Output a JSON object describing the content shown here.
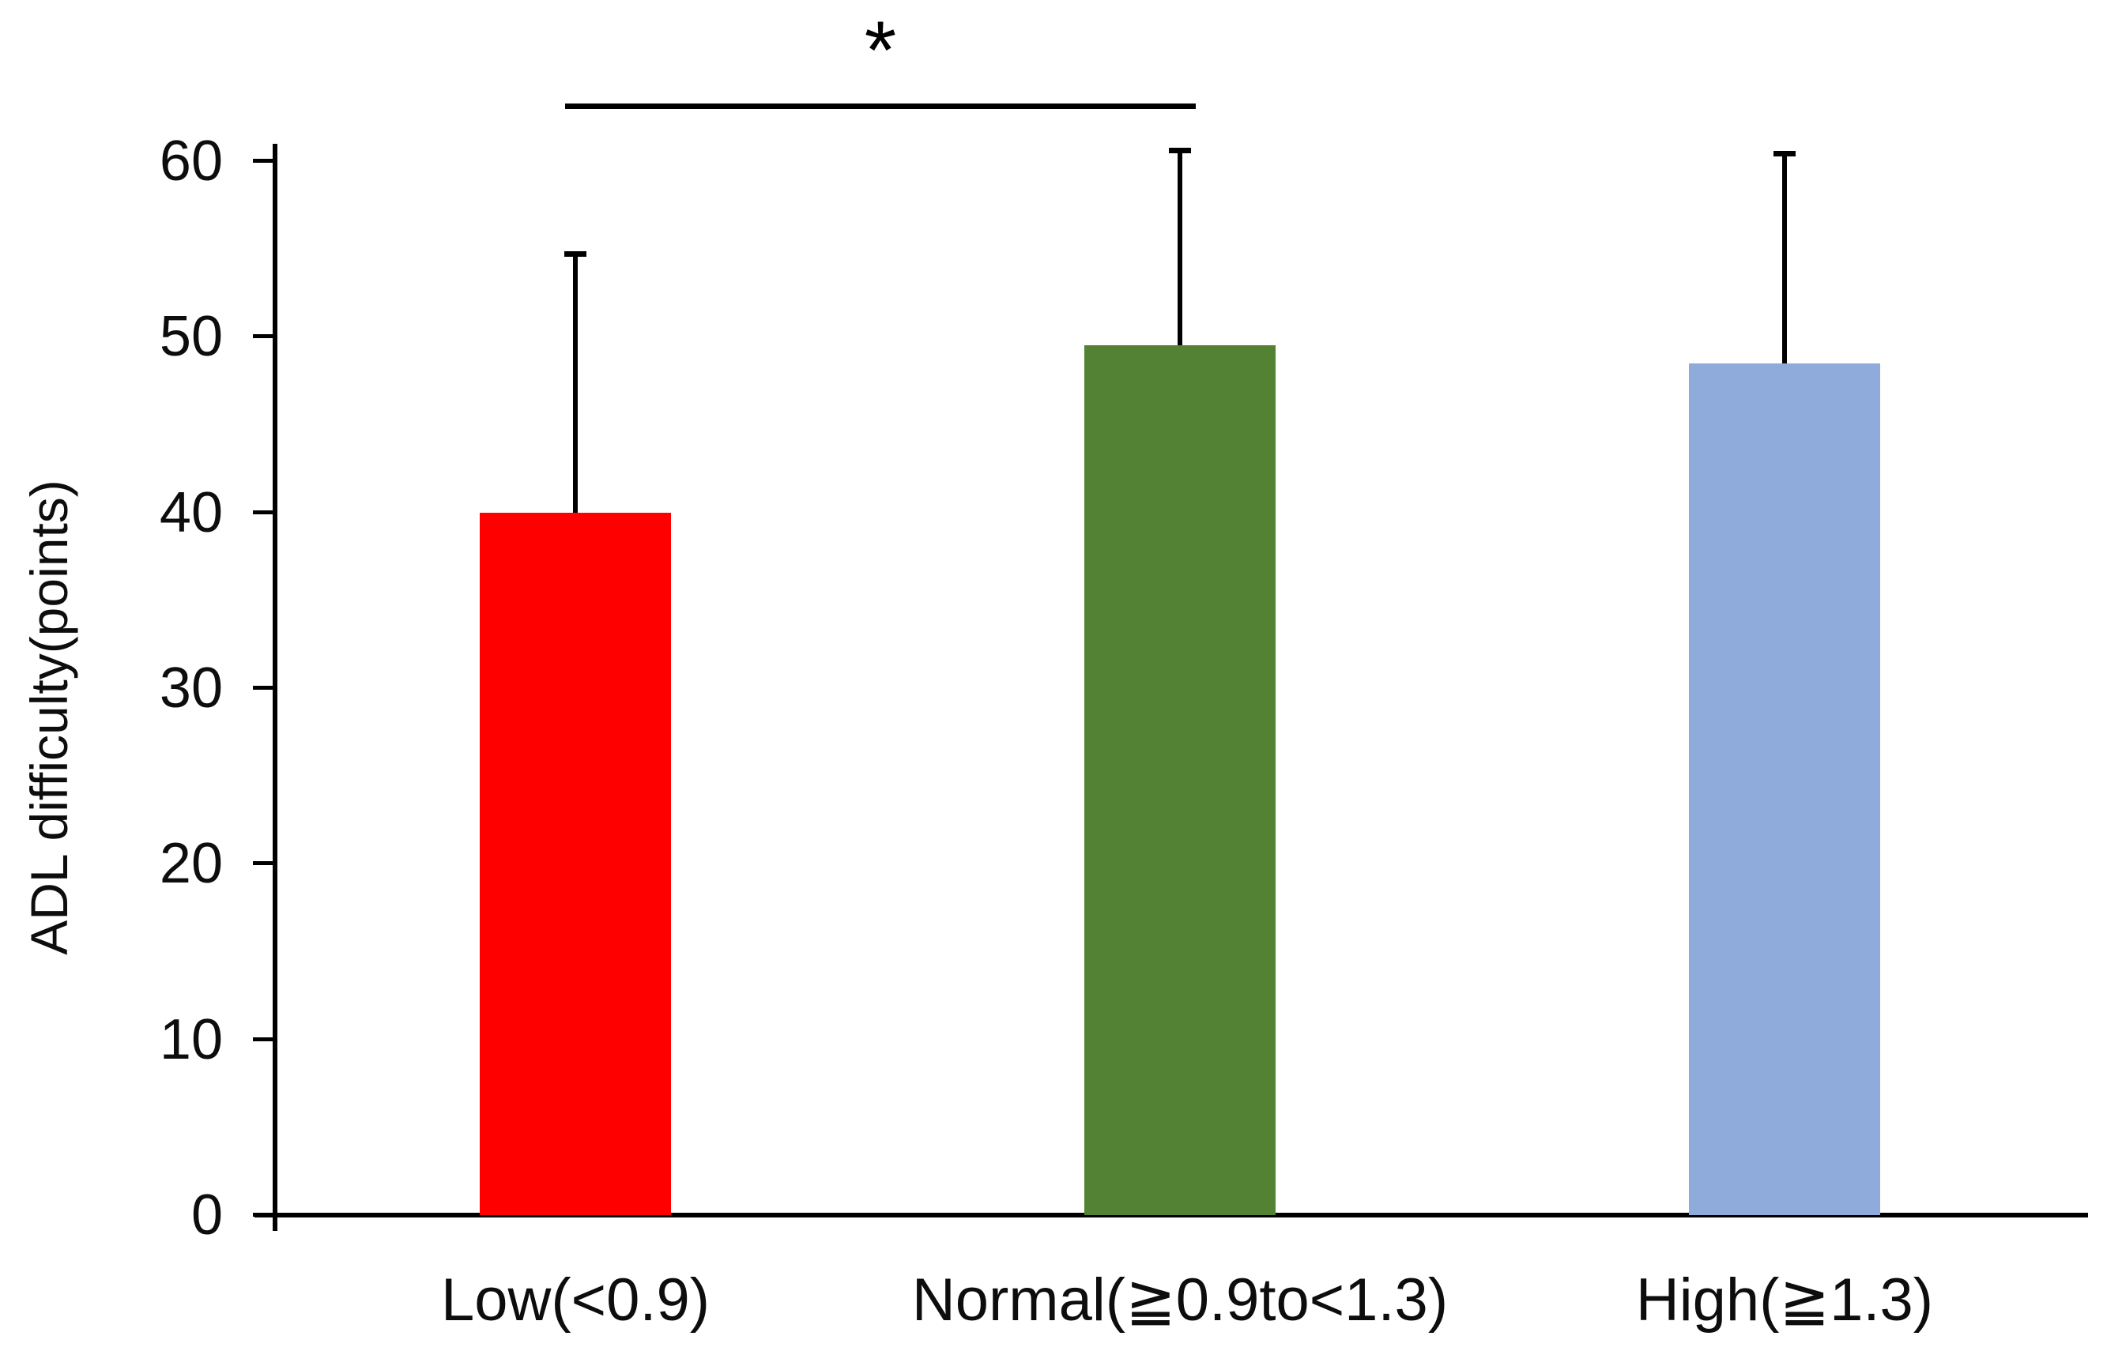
{
  "figure": {
    "background_color": "#ffffff",
    "axis_color": "#000000",
    "text_color": "#0d0d0d"
  },
  "chart_data": {
    "type": "bar",
    "title": "",
    "xlabel": "",
    "ylabel": "ADL difficulty(points)",
    "categories": [
      "Low(<0.9)",
      "Normal(≧0.9to<1.3)",
      "High(≧1.3)"
    ],
    "values": [
      40,
      49.5,
      48.5
    ],
    "error_up": [
      14.7,
      11.1,
      11.9
    ],
    "error_bar_tops": [
      54.7,
      60.6,
      60.4
    ],
    "bar_colors": [
      "#FF0000",
      "#548235",
      "#8EABDC"
    ],
    "ylim": [
      0,
      60
    ],
    "yticks": [
      0,
      10,
      20,
      30,
      40,
      50,
      60
    ],
    "grid": false,
    "legend": false,
    "annotation": {
      "type": "significance-bracket",
      "text": "*",
      "from_category": "Low(<0.9)",
      "to_category": "Normal(≧0.9to<1.3)"
    }
  }
}
